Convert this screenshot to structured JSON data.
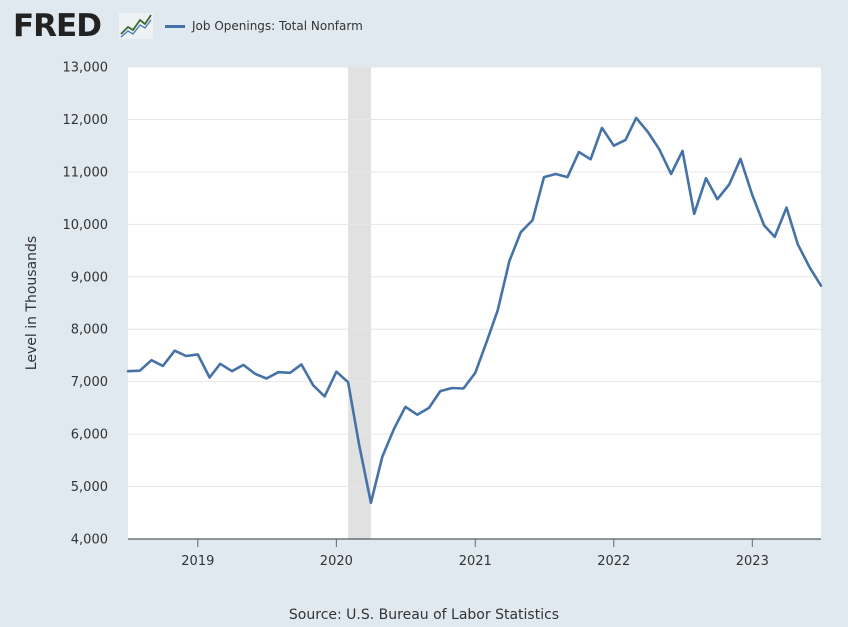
{
  "header": {
    "logo_text": "FRED",
    "logo_icon": "fred-trend-line-icon"
  },
  "footer": {
    "source": "Source: U.S. Bureau of Labor Statistics"
  },
  "colors": {
    "series": "#4572a7",
    "page_background": "#e1e9f0",
    "plot_background": "#ffffff",
    "recession_band": "#e1e1e1",
    "gridline": "#e6e6e6"
  },
  "chart_data": {
    "type": "line",
    "title": "",
    "xlabel": "",
    "ylabel": "Level in Thousands",
    "legend_position": "top-left",
    "grid": true,
    "ylim": [
      4000,
      13000
    ],
    "xlim": [
      "2018-07-01",
      "2023-07-01"
    ],
    "y_ticks": [
      "4,000",
      "5,000",
      "6,000",
      "7,000",
      "8,000",
      "9,000",
      "10,000",
      "11,000",
      "12,000",
      "13,000"
    ],
    "x_ticks": [
      {
        "label": "2019",
        "date": "2019-01-01"
      },
      {
        "label": "2020",
        "date": "2020-01-01"
      },
      {
        "label": "2021",
        "date": "2021-01-01"
      },
      {
        "label": "2022",
        "date": "2022-01-01"
      },
      {
        "label": "2023",
        "date": "2023-01-01"
      }
    ],
    "recession": {
      "start": "2020-02-01",
      "end": "2020-04-01"
    },
    "series": [
      {
        "name": "Job Openings: Total Nonfarm",
        "x": [
          "2018-07-01",
          "2018-08-01",
          "2018-09-01",
          "2018-10-01",
          "2018-11-01",
          "2018-12-01",
          "2019-01-01",
          "2019-02-01",
          "2019-03-01",
          "2019-04-01",
          "2019-05-01",
          "2019-06-01",
          "2019-07-01",
          "2019-08-01",
          "2019-09-01",
          "2019-10-01",
          "2019-11-01",
          "2019-12-01",
          "2020-01-01",
          "2020-02-01",
          "2020-03-01",
          "2020-04-01",
          "2020-05-01",
          "2020-06-01",
          "2020-07-01",
          "2020-08-01",
          "2020-09-01",
          "2020-10-01",
          "2020-11-01",
          "2020-12-01",
          "2021-01-01",
          "2021-02-01",
          "2021-03-01",
          "2021-04-01",
          "2021-05-01",
          "2021-06-01",
          "2021-07-01",
          "2021-08-01",
          "2021-09-01",
          "2021-10-01",
          "2021-11-01",
          "2021-12-01",
          "2022-01-01",
          "2022-02-01",
          "2022-03-01",
          "2022-04-01",
          "2022-05-01",
          "2022-06-01",
          "2022-07-01",
          "2022-08-01",
          "2022-09-01",
          "2022-10-01",
          "2022-11-01",
          "2022-12-01",
          "2023-01-01",
          "2023-02-01",
          "2023-03-01",
          "2023-04-01",
          "2023-05-01",
          "2023-06-01",
          "2023-07-01"
        ],
        "values": [
          7200,
          7210,
          7410,
          7300,
          7590,
          7490,
          7520,
          7080,
          7340,
          7200,
          7320,
          7150,
          7060,
          7180,
          7170,
          7330,
          6930,
          6720,
          7190,
          6990,
          5800,
          4690,
          5570,
          6100,
          6520,
          6370,
          6500,
          6820,
          6880,
          6870,
          7170,
          7780,
          8360,
          9300,
          9850,
          10080,
          10900,
          10960,
          10900,
          11380,
          11240,
          11840,
          11500,
          11610,
          12030,
          11760,
          11430,
          10960,
          11400,
          10200,
          10880,
          10480,
          10760,
          11250,
          10560,
          9980,
          9760,
          10320,
          9620,
          9180,
          8830
        ]
      }
    ]
  }
}
